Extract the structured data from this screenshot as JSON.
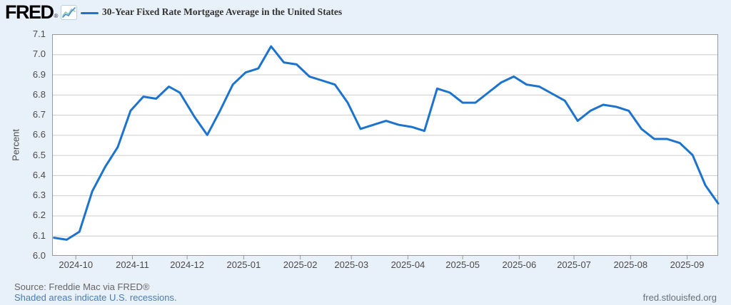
{
  "header": {
    "logo_text": "FRED",
    "registered_mark": "®",
    "legend_label": "30-Year Fixed Rate Mortgage Average in the United States"
  },
  "chart_data": {
    "type": "line",
    "title": "30-Year Fixed Rate Mortgage Average in the United States",
    "xlabel": "",
    "ylabel": "Percent",
    "ylim": [
      6.0,
      7.1
    ],
    "y_ticks": [
      6.0,
      6.1,
      6.2,
      6.3,
      6.4,
      6.5,
      6.6,
      6.7,
      6.8,
      6.9,
      7.0,
      7.1
    ],
    "x_range": [
      "2024-09-18",
      "2025-09-18"
    ],
    "x_ticks": [
      {
        "date": "2024-10-01",
        "label": "2024-10"
      },
      {
        "date": "2024-11-01",
        "label": "2024-11"
      },
      {
        "date": "2024-12-01",
        "label": "2024-12"
      },
      {
        "date": "2025-01-01",
        "label": "2025-01"
      },
      {
        "date": "2025-02-01",
        "label": "2025-02"
      },
      {
        "date": "2025-03-01",
        "label": "2025-03"
      },
      {
        "date": "2025-04-01",
        "label": "2025-04"
      },
      {
        "date": "2025-05-01",
        "label": "2025-05"
      },
      {
        "date": "2025-06-01",
        "label": "2025-06"
      },
      {
        "date": "2025-07-01",
        "label": "2025-07"
      },
      {
        "date": "2025-08-01",
        "label": "2025-08"
      },
      {
        "date": "2025-09-01",
        "label": "2025-09"
      }
    ],
    "grid": true,
    "legend_position": "top-left",
    "series": [
      {
        "name": "30-Year Fixed Rate Mortgage Average in the United States",
        "color": "#1c73cd",
        "frequency": "weekly",
        "dates": [
          "2024-09-19",
          "2024-09-26",
          "2024-10-03",
          "2024-10-10",
          "2024-10-17",
          "2024-10-24",
          "2024-10-31",
          "2024-11-07",
          "2024-11-14",
          "2024-11-21",
          "2024-11-27",
          "2024-12-05",
          "2024-12-12",
          "2024-12-19",
          "2024-12-26",
          "2025-01-02",
          "2025-01-09",
          "2025-01-16",
          "2025-01-23",
          "2025-01-30",
          "2025-02-06",
          "2025-02-13",
          "2025-02-20",
          "2025-02-27",
          "2025-03-06",
          "2025-03-13",
          "2025-03-20",
          "2025-03-27",
          "2025-04-03",
          "2025-04-10",
          "2025-04-17",
          "2025-04-24",
          "2025-05-01",
          "2025-05-08",
          "2025-05-15",
          "2025-05-22",
          "2025-05-29",
          "2025-06-05",
          "2025-06-12",
          "2025-06-18",
          "2025-06-26",
          "2025-07-03",
          "2025-07-10",
          "2025-07-17",
          "2025-07-24",
          "2025-07-31",
          "2025-08-07",
          "2025-08-14",
          "2025-08-21",
          "2025-08-28",
          "2025-09-04",
          "2025-09-11",
          "2025-09-18"
        ],
        "values": [
          6.09,
          6.08,
          6.12,
          6.32,
          6.44,
          6.54,
          6.72,
          6.79,
          6.78,
          6.84,
          6.81,
          6.69,
          6.6,
          6.72,
          6.85,
          6.91,
          6.93,
          7.04,
          6.96,
          6.95,
          6.89,
          6.87,
          6.85,
          6.76,
          6.63,
          6.65,
          6.67,
          6.65,
          6.64,
          6.62,
          6.83,
          6.81,
          6.76,
          6.76,
          6.81,
          6.86,
          6.89,
          6.85,
          6.84,
          6.81,
          6.77,
          6.67,
          6.72,
          6.75,
          6.74,
          6.72,
          6.63,
          6.58,
          6.58,
          6.56,
          6.5,
          6.35,
          6.26
        ]
      }
    ]
  },
  "footer": {
    "source": "Source: Freddie Mac via FRED®",
    "recessions_note": "Shaded areas indicate U.S. recessions.",
    "site": "fred.stlouisfed.org"
  },
  "colors": {
    "background": "#e8f1f9",
    "plot_background": "#ffffff",
    "grid": "#cccccc",
    "axis_border": "#999999",
    "line": "#1c73cd",
    "tick_text": "#4a4a4a",
    "title_text": "#333333",
    "source_text": "#666666",
    "link": "#4a7bb7"
  }
}
